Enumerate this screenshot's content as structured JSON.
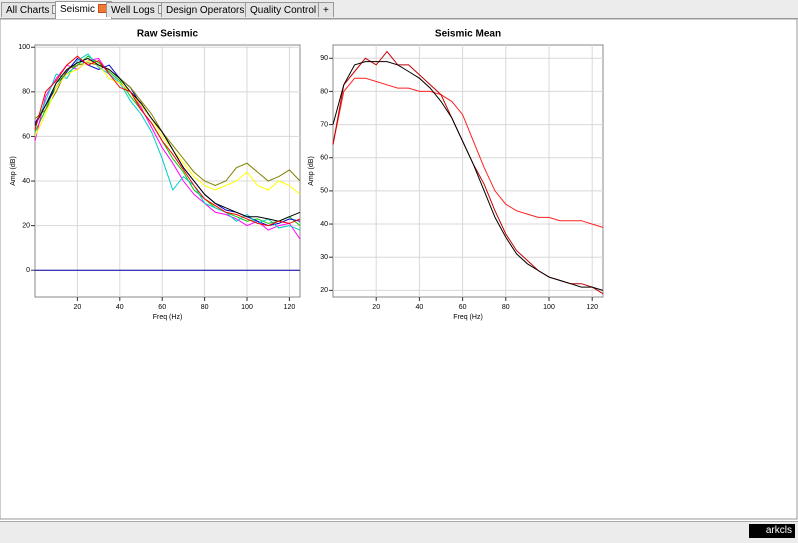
{
  "tabs": [
    "All Charts",
    "Seismic",
    "Well Logs",
    "Design Operators",
    "Quality Control",
    "+"
  ],
  "active_tab": 1,
  "logo": "arkcls",
  "chart_data": [
    {
      "type": "line",
      "title": "Raw Seismic",
      "x_label": "Freq (Hz)",
      "y_label": "Amp (dB)",
      "x": [
        0,
        5,
        10,
        15,
        20,
        25,
        30,
        35,
        40,
        45,
        50,
        55,
        60,
        65,
        70,
        75,
        80,
        85,
        90,
        95,
        100,
        105,
        110,
        115,
        120,
        125
      ],
      "xlim": [
        0,
        125
      ],
      "xticks": [
        20,
        40,
        60,
        80,
        100,
        120
      ],
      "ylim": [
        -12,
        101
      ],
      "yticks": [
        0,
        20,
        40,
        60,
        80,
        100
      ],
      "grid": true,
      "series": [
        {
          "color": "#00cc00",
          "values": [
            62,
            72,
            84,
            88,
            92,
            96,
            93,
            89,
            85,
            78,
            72,
            66,
            58,
            50,
            44,
            36,
            32,
            28,
            26,
            24,
            22,
            23,
            21,
            22,
            24,
            20
          ]
        },
        {
          "color": "#ff00ff",
          "values": [
            58,
            78,
            86,
            92,
            90,
            94,
            95,
            88,
            84,
            80,
            73,
            64,
            55,
            48,
            40,
            34,
            30,
            26,
            25,
            23,
            20,
            22,
            18,
            20,
            21,
            14
          ]
        },
        {
          "color": "#0000cc",
          "values": [
            66,
            74,
            82,
            89,
            95,
            92,
            90,
            92,
            86,
            82,
            74,
            68,
            62,
            54,
            46,
            40,
            34,
            30,
            27,
            26,
            24,
            22,
            20,
            21,
            23,
            22
          ]
        },
        {
          "color": "#00cccc",
          "values": [
            64,
            76,
            88,
            86,
            94,
            97,
            91,
            88,
            84,
            76,
            70,
            62,
            50,
            36,
            42,
            38,
            30,
            28,
            26,
            22,
            25,
            21,
            23,
            19,
            20,
            18
          ]
        },
        {
          "color": "#808000",
          "values": [
            68,
            72,
            80,
            90,
            92,
            93,
            92,
            90,
            86,
            82,
            76,
            70,
            62,
            56,
            50,
            44,
            40,
            38,
            40,
            46,
            48,
            44,
            40,
            42,
            45,
            40
          ]
        },
        {
          "color": "#ffff00",
          "values": [
            60,
            70,
            82,
            88,
            90,
            94,
            92,
            86,
            84,
            80,
            74,
            68,
            60,
            54,
            48,
            42,
            38,
            36,
            38,
            40,
            44,
            38,
            36,
            40,
            38,
            34
          ]
        },
        {
          "color": "#000000",
          "values": [
            65,
            74,
            84,
            90,
            93,
            95,
            92,
            90,
            86,
            80,
            75,
            68,
            62,
            54,
            46,
            40,
            34,
            30,
            28,
            26,
            24,
            24,
            23,
            22,
            24,
            26
          ]
        },
        {
          "color": "#ff0000",
          "values": [
            63,
            80,
            85,
            92,
            96,
            92,
            94,
            88,
            82,
            80,
            72,
            66,
            58,
            52,
            45,
            38,
            32,
            29,
            26,
            25,
            23,
            21,
            20,
            22,
            21,
            23
          ]
        },
        {
          "color": "#0000aa",
          "values": [
            0,
            0,
            0,
            0,
            0,
            0,
            0,
            0,
            0,
            0,
            0,
            0,
            0,
            0,
            0,
            0,
            0,
            0,
            0,
            0,
            0,
            0,
            0,
            0,
            0,
            0
          ]
        }
      ]
    },
    {
      "type": "line",
      "title": "Seismic Mean",
      "x_label": "Freq (Hz)",
      "y_label": "Amp (dB)",
      "x": [
        0,
        5,
        10,
        15,
        20,
        25,
        30,
        35,
        40,
        45,
        50,
        55,
        60,
        65,
        70,
        75,
        80,
        85,
        90,
        95,
        100,
        105,
        110,
        115,
        120,
        125
      ],
      "xlim": [
        0,
        125
      ],
      "xticks": [
        20,
        40,
        60,
        80,
        100,
        120
      ],
      "ylim": [
        18,
        94
      ],
      "yticks": [
        20,
        30,
        40,
        50,
        60,
        70,
        80,
        90
      ],
      "grid": true,
      "series": [
        {
          "color": "#ff2020",
          "values": [
            64,
            80,
            84,
            84,
            83,
            82,
            81,
            81,
            80,
            80,
            79,
            77,
            73,
            65,
            57,
            50,
            46,
            44,
            43,
            42,
            42,
            41,
            41,
            41,
            40,
            39
          ]
        },
        {
          "color": "#c00000",
          "values": [
            64,
            82,
            86,
            90,
            88,
            92,
            88,
            88,
            85,
            82,
            79,
            72,
            65,
            58,
            52,
            44,
            37,
            32,
            29,
            26,
            24,
            23,
            22,
            22,
            21,
            19
          ]
        },
        {
          "color": "#000000",
          "values": [
            70,
            82,
            88,
            89,
            89,
            89,
            88,
            86,
            84,
            81,
            77,
            72,
            65,
            58,
            50,
            42,
            36,
            31,
            28,
            26,
            24,
            23,
            22,
            21,
            21,
            20
          ]
        }
      ]
    }
  ]
}
